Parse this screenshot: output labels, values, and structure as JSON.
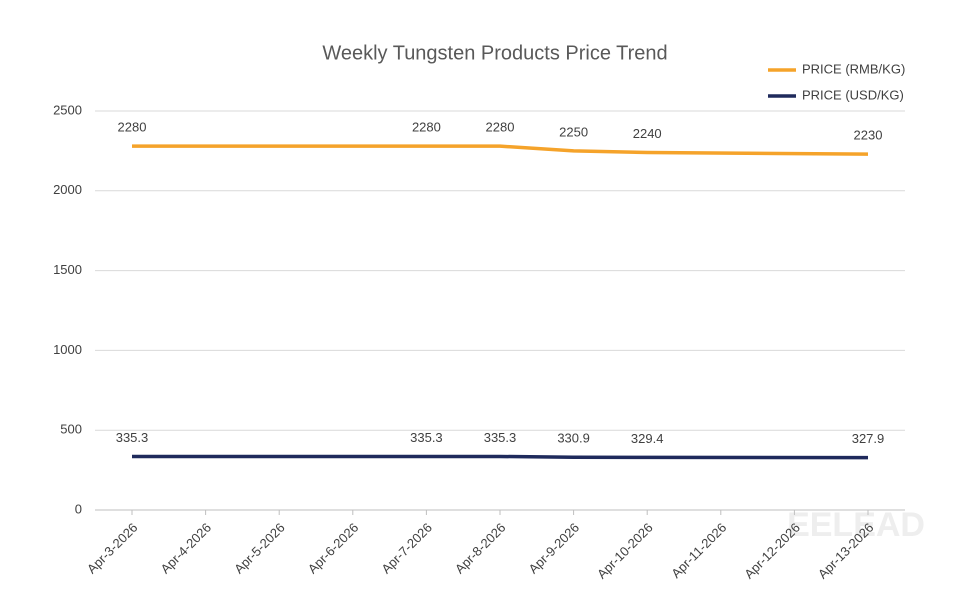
{
  "chart_data": {
    "type": "line",
    "title": "Weekly Tungsten Products Price Trend",
    "x": [
      "2026-04-03",
      "2026-04-07",
      "2026-04-08",
      "2026-04-09",
      "2026-04-10",
      "2026-04-13"
    ],
    "series": [
      {
        "name": "PRICE (RMB/KG)",
        "color": "#f5a32a",
        "values": [
          2280,
          2280,
          2280,
          2250,
          2240,
          2230
        ]
      },
      {
        "name": "PRICE (USD/KG)",
        "color": "#1f2a5c",
        "values": [
          335.3,
          335.3,
          335.3,
          330.9,
          329.4,
          327.9
        ]
      }
    ],
    "xlim": [
      "2026-04-03",
      "2026-04-13"
    ],
    "xticks": [
      {
        "value": "2026-04-03",
        "label": "Apr-3-2026"
      },
      {
        "value": "2026-04-04",
        "label": "Apr-4-2026"
      },
      {
        "value": "2026-04-05",
        "label": "Apr-5-2026"
      },
      {
        "value": "2026-04-06",
        "label": "Apr-6-2026"
      },
      {
        "value": "2026-04-07",
        "label": "Apr-7-2026"
      },
      {
        "value": "2026-04-08",
        "label": "Apr-8-2026"
      },
      {
        "value": "2026-04-09",
        "label": "Apr-9-2026"
      },
      {
        "value": "2026-04-10",
        "label": "Apr-10-2026"
      },
      {
        "value": "2026-04-11",
        "label": "Apr-11-2026"
      },
      {
        "value": "2026-04-12",
        "label": "Apr-12-2026"
      },
      {
        "value": "2026-04-13",
        "label": "Apr-13-2026"
      }
    ],
    "ylim": [
      0,
      2500
    ],
    "yticks": [
      0,
      500,
      1000,
      1500,
      2000,
      2500
    ],
    "grid": true,
    "legend": "top-right",
    "watermark": "EELEAD"
  }
}
